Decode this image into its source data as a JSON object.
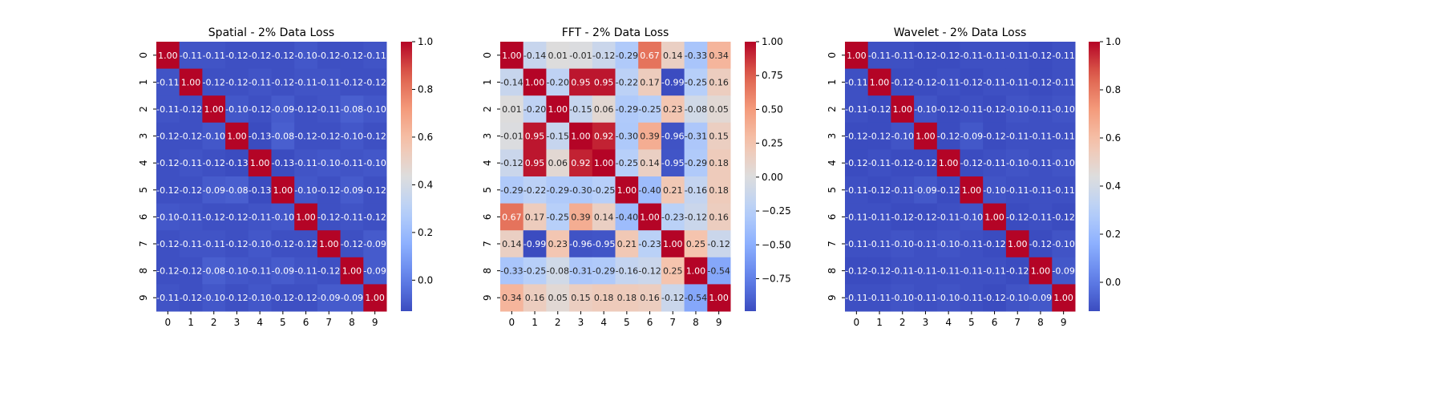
{
  "chart_data": [
    {
      "type": "heatmap",
      "title": "Spatial - 2% Data Loss",
      "x_tick_labels": [
        "0",
        "1",
        "2",
        "3",
        "4",
        "5",
        "6",
        "7",
        "8",
        "9"
      ],
      "y_tick_labels": [
        "0",
        "1",
        "2",
        "3",
        "4",
        "5",
        "6",
        "7",
        "8",
        "9"
      ],
      "colormap": "coolwarm",
      "vmin": -0.13,
      "vmax": 1.0,
      "colorbar_ticks": [
        "0.0",
        "0.2",
        "0.4",
        "0.6",
        "0.8",
        "1.0"
      ],
      "colorbar_tick_values": [
        0.0,
        0.2,
        0.4,
        0.6,
        0.8,
        1.0
      ],
      "matrix": [
        [
          1.0,
          -0.11,
          -0.11,
          -0.12,
          -0.12,
          -0.12,
          -0.1,
          -0.12,
          -0.12,
          -0.11
        ],
        [
          -0.11,
          1.0,
          -0.12,
          -0.12,
          -0.11,
          -0.12,
          -0.11,
          -0.11,
          -0.12,
          -0.12
        ],
        [
          -0.11,
          -0.12,
          1.0,
          -0.1,
          -0.12,
          -0.09,
          -0.12,
          -0.11,
          -0.08,
          -0.1
        ],
        [
          -0.12,
          -0.12,
          -0.1,
          1.0,
          -0.13,
          -0.08,
          -0.12,
          -0.12,
          -0.1,
          -0.12
        ],
        [
          -0.12,
          -0.11,
          -0.12,
          -0.13,
          1.0,
          -0.13,
          -0.11,
          -0.1,
          -0.11,
          -0.1
        ],
        [
          -0.12,
          -0.12,
          -0.09,
          -0.08,
          -0.13,
          1.0,
          -0.1,
          -0.12,
          -0.09,
          -0.12
        ],
        [
          -0.1,
          -0.11,
          -0.12,
          -0.12,
          -0.11,
          -0.1,
          1.0,
          -0.12,
          -0.11,
          -0.12
        ],
        [
          -0.12,
          -0.11,
          -0.11,
          -0.12,
          -0.1,
          -0.12,
          -0.12,
          1.0,
          -0.12,
          -0.09
        ],
        [
          -0.12,
          -0.12,
          -0.08,
          -0.1,
          -0.11,
          -0.09,
          -0.11,
          -0.12,
          1.0,
          -0.09
        ],
        [
          -0.11,
          -0.12,
          -0.1,
          -0.12,
          -0.1,
          -0.12,
          -0.12,
          -0.09,
          -0.09,
          1.0
        ]
      ]
    },
    {
      "type": "heatmap",
      "title": "FFT - 2% Data Loss",
      "x_tick_labels": [
        "0",
        "1",
        "2",
        "3",
        "4",
        "5",
        "6",
        "7",
        "8",
        "9"
      ],
      "y_tick_labels": [
        "0",
        "1",
        "2",
        "3",
        "4",
        "5",
        "6",
        "7",
        "8",
        "9"
      ],
      "colormap": "coolwarm",
      "vmin": -0.99,
      "vmax": 1.0,
      "colorbar_ticks": [
        "−0.75",
        "−0.50",
        "−0.25",
        "0.00",
        "0.25",
        "0.50",
        "0.75",
        "1.00"
      ],
      "colorbar_tick_values": [
        -0.75,
        -0.5,
        -0.25,
        0.0,
        0.25,
        0.5,
        0.75,
        1.0
      ],
      "matrix": [
        [
          1.0,
          -0.14,
          0.01,
          -0.01,
          -0.12,
          -0.29,
          0.67,
          0.14,
          -0.33,
          0.34
        ],
        [
          -0.14,
          1.0,
          -0.2,
          0.95,
          0.95,
          -0.22,
          0.17,
          -0.99,
          -0.25,
          0.16
        ],
        [
          0.01,
          -0.2,
          1.0,
          -0.15,
          0.06,
          -0.29,
          -0.25,
          0.23,
          -0.08,
          0.05
        ],
        [
          -0.01,
          0.95,
          -0.15,
          1.0,
          0.92,
          -0.3,
          0.39,
          -0.96,
          -0.31,
          0.15
        ],
        [
          -0.12,
          0.95,
          0.06,
          0.92,
          1.0,
          -0.25,
          0.14,
          -0.95,
          -0.29,
          0.18
        ],
        [
          -0.29,
          -0.22,
          -0.29,
          -0.3,
          -0.25,
          1.0,
          -0.4,
          0.21,
          -0.16,
          0.18
        ],
        [
          0.67,
          0.17,
          -0.25,
          0.39,
          0.14,
          -0.4,
          1.0,
          -0.23,
          -0.12,
          0.16
        ],
        [
          0.14,
          -0.99,
          0.23,
          -0.96,
          -0.95,
          0.21,
          -0.23,
          1.0,
          0.25,
          -0.12
        ],
        [
          -0.33,
          -0.25,
          -0.08,
          -0.31,
          -0.29,
          -0.16,
          -0.12,
          0.25,
          1.0,
          -0.54
        ],
        [
          0.34,
          0.16,
          0.05,
          0.15,
          0.18,
          0.18,
          0.16,
          -0.12,
          -0.54,
          1.0
        ]
      ]
    },
    {
      "type": "heatmap",
      "title": "Wavelet - 2% Data Loss",
      "x_tick_labels": [
        "0",
        "1",
        "2",
        "3",
        "4",
        "5",
        "6",
        "7",
        "8",
        "9"
      ],
      "y_tick_labels": [
        "0",
        "1",
        "2",
        "3",
        "4",
        "5",
        "6",
        "7",
        "8",
        "9"
      ],
      "colormap": "coolwarm",
      "vmin": -0.12,
      "vmax": 1.0,
      "colorbar_ticks": [
        "0.0",
        "0.2",
        "0.4",
        "0.6",
        "0.8",
        "1.0"
      ],
      "colorbar_tick_values": [
        0.0,
        0.2,
        0.4,
        0.6,
        0.8,
        1.0
      ],
      "matrix": [
        [
          1.0,
          -0.11,
          -0.11,
          -0.12,
          -0.12,
          -0.11,
          -0.11,
          -0.11,
          -0.12,
          -0.11
        ],
        [
          -0.11,
          1.0,
          -0.12,
          -0.12,
          -0.11,
          -0.12,
          -0.11,
          -0.11,
          -0.12,
          -0.11
        ],
        [
          -0.11,
          -0.12,
          1.0,
          -0.1,
          -0.12,
          -0.11,
          -0.12,
          -0.1,
          -0.11,
          -0.1
        ],
        [
          -0.12,
          -0.12,
          -0.1,
          1.0,
          -0.12,
          -0.09,
          -0.12,
          -0.11,
          -0.11,
          -0.11
        ],
        [
          -0.12,
          -0.11,
          -0.12,
          -0.12,
          1.0,
          -0.12,
          -0.11,
          -0.1,
          -0.11,
          -0.1
        ],
        [
          -0.11,
          -0.12,
          -0.11,
          -0.09,
          -0.12,
          1.0,
          -0.1,
          -0.11,
          -0.11,
          -0.11
        ],
        [
          -0.11,
          -0.11,
          -0.12,
          -0.12,
          -0.11,
          -0.1,
          1.0,
          -0.12,
          -0.11,
          -0.12
        ],
        [
          -0.11,
          -0.11,
          -0.1,
          -0.11,
          -0.1,
          -0.11,
          -0.12,
          1.0,
          -0.12,
          -0.1
        ],
        [
          -0.12,
          -0.12,
          -0.11,
          -0.11,
          -0.11,
          -0.11,
          -0.11,
          -0.12,
          1.0,
          -0.09
        ],
        [
          -0.11,
          -0.11,
          -0.1,
          -0.11,
          -0.1,
          -0.11,
          -0.12,
          -0.1,
          -0.09,
          1.0
        ]
      ]
    }
  ]
}
